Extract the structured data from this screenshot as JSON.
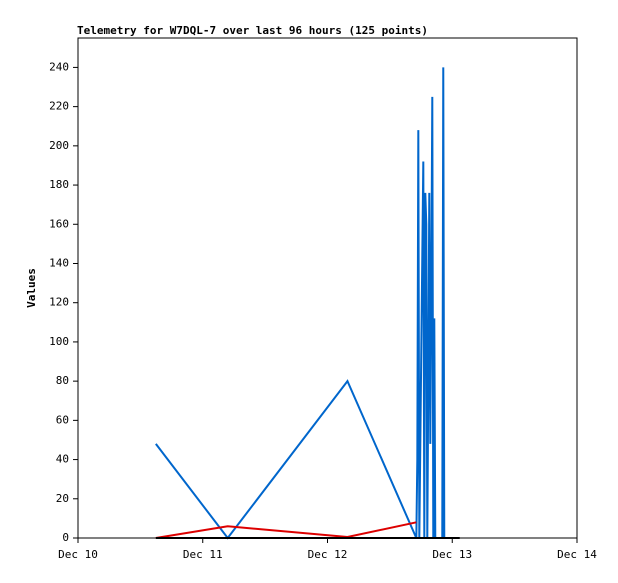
{
  "chart_data": {
    "type": "line",
    "title": "Telemetry for W7DQL-7 over last 96 hours (125 points)",
    "y_label": "Values",
    "xlim": [
      0,
      4
    ],
    "xticks": [
      {
        "value": 0,
        "label": "Dec 10"
      },
      {
        "value": 1,
        "label": "Dec 11"
      },
      {
        "value": 2,
        "label": "Dec 12"
      },
      {
        "value": 3,
        "label": "Dec 13"
      },
      {
        "value": 4,
        "label": "Dec 14"
      }
    ],
    "ylim": [
      0,
      255
    ],
    "yticks": [
      0,
      20,
      40,
      60,
      80,
      100,
      120,
      140,
      160,
      180,
      200,
      220,
      240
    ],
    "series": [
      {
        "color": "#0066cc",
        "x": [
          0.624,
          1.2,
          2.16,
          2.712,
          2.72,
          2.728,
          2.736,
          2.752,
          2.768,
          2.776,
          2.784,
          2.792,
          2.8,
          2.808,
          2.816,
          2.824,
          2.832,
          2.84,
          2.848,
          2.856,
          2.864,
          2.92,
          2.928,
          2.936
        ],
        "values": [
          48,
          0,
          80,
          0,
          40,
          208,
          0,
          97,
          192,
          0,
          176,
          160,
          0,
          80,
          176,
          48,
          128,
          225,
          0,
          112,
          0,
          0,
          240,
          0
        ]
      },
      {
        "color": "#dd0000",
        "x": [
          0.624,
          1.2,
          2.16,
          2.712
        ],
        "values": [
          0,
          6,
          0.5,
          8
        ]
      },
      {
        "color": "#000000",
        "x": [
          0.624,
          3.06
        ],
        "values": [
          0,
          0
        ]
      }
    ]
  }
}
